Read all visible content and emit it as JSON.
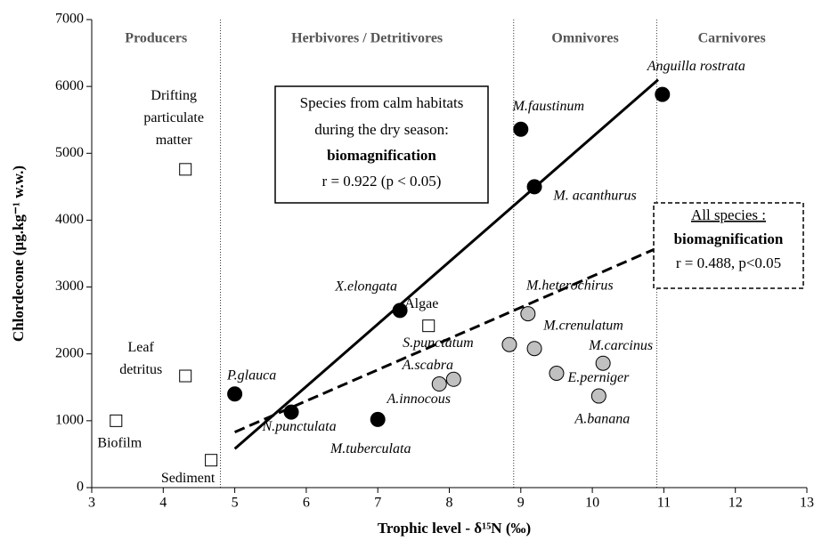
{
  "chart_data": {
    "type": "scatter",
    "xlabel": "Trophic level - δ¹⁵N (‰)",
    "ylabel": "Chlordecone (µg.kg⁻¹ w.w.)",
    "xlim": [
      3,
      13
    ],
    "xticks": [
      3,
      4,
      5,
      6,
      7,
      8,
      9,
      10,
      11,
      12,
      13
    ],
    "ylim": [
      0,
      7000
    ],
    "yticks": [
      0,
      1000,
      2000,
      3000,
      4000,
      5000,
      6000,
      7000
    ],
    "dividers": [
      4.8,
      8.9,
      10.9
    ],
    "zone_labels": [
      "Producers",
      "Herbivores / Detritivores",
      "Omnivores",
      "Carnivores"
    ],
    "series": [
      {
        "marker": "circle",
        "color": "#000000",
        "x": [
          5.0,
          5.79,
          7.0,
          7.31,
          9.0,
          9.19,
          10.98
        ],
        "values": [
          1400,
          1130,
          1020,
          2650,
          5360,
          4500,
          5880
        ],
        "labels": [
          "P.glauca",
          "N.punctulata",
          "M.tuberculata",
          "X.elongata",
          "M.faustinum",
          "M. acanthurus",
          "Anguilla rostrata"
        ]
      },
      {
        "marker": "circle",
        "color": "#c0c0c0",
        "x": [
          7.86,
          8.06,
          8.84,
          9.1,
          9.19,
          9.5,
          10.15,
          10.09
        ],
        "values": [
          1550,
          1620,
          2140,
          2600,
          2080,
          1710,
          1860,
          1370
        ],
        "labels": [
          "A.innocous",
          "A.scabra",
          "S.punctatum",
          "M.heterochirus",
          "M.crenulatum",
          "E.perniger",
          "M.carcinus",
          "A.banana"
        ]
      },
      {
        "marker": "square",
        "color": "#ffffff",
        "x": [
          4.31,
          4.31,
          3.34,
          4.67,
          7.71
        ],
        "values": [
          4760,
          1670,
          1000,
          410,
          2420
        ],
        "labels": [
          [
            "Drifting",
            "particulate",
            "matter"
          ],
          [
            "Leaf",
            "detritus"
          ],
          [
            "Biofilm"
          ],
          [
            "Sediment"
          ],
          [
            "Algae"
          ]
        ]
      }
    ],
    "trend_lines": [
      {
        "style": "solid",
        "x": [
          5.0,
          10.92
        ],
        "y": [
          580,
          6100
        ]
      },
      {
        "style": "dashed",
        "x": [
          5.0,
          10.9
        ],
        "y": [
          830,
          3580
        ]
      }
    ],
    "annotations": [
      {
        "style": "solid",
        "lines": [
          "Species from calm habitats",
          "during the dry season:",
          "biomagnification",
          "r = 0.922 (p < 0.05)"
        ]
      },
      {
        "style": "dashed",
        "lines": [
          "All species :",
          "biomagnification",
          "r = 0.488, p<0.05"
        ]
      }
    ]
  }
}
